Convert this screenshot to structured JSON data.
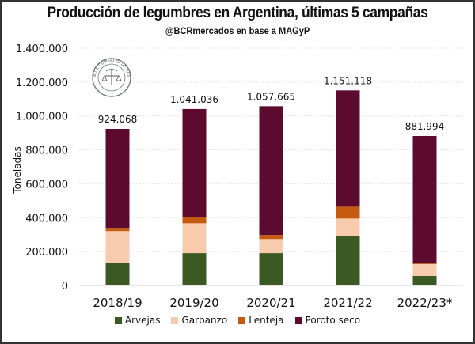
{
  "chart_data": {
    "type": "bar",
    "stacked": true,
    "title": "Producción de legumbres en Argentina, últimas 5 campañas",
    "subtitle": "@BCRmercados en base a MAGyP",
    "xlabel": "",
    "ylabel": "Toneladas",
    "ylim": [
      0,
      1400000
    ],
    "yticks": [
      0,
      200000,
      400000,
      600000,
      800000,
      1000000,
      1200000,
      1400000
    ],
    "ytick_labels": [
      "0",
      "200.000",
      "400.000",
      "600.000",
      "800.000",
      "1.000.000",
      "1.200.000",
      "1.400.000"
    ],
    "grid": true,
    "legend_position": "bottom",
    "categories": [
      "2018/19",
      "2019/20",
      "2020/21",
      "2021/22",
      "2022/23*"
    ],
    "series": [
      {
        "name": "Arvejas",
        "color": "#3b5a23",
        "values": [
          135000,
          191000,
          191000,
          293000,
          56000
        ]
      },
      {
        "name": "Garbanzo",
        "color": "#f8cbad",
        "values": [
          186000,
          176000,
          83000,
          102000,
          70000
        ]
      },
      {
        "name": "Lenteja",
        "color": "#c55a11",
        "values": [
          19000,
          38000,
          24000,
          70000,
          4000
        ]
      },
      {
        "name": "Poroto seco",
        "color": "#5c0a2e",
        "values": [
          584068,
          636036,
          759665,
          686118,
          751994
        ]
      }
    ],
    "totals": [
      924068,
      1041036,
      1057665,
      1151118,
      881994
    ],
    "total_labels": [
      "924.068",
      "1.041.036",
      "1.057.665",
      "1.151.118",
      "881.994"
    ]
  },
  "logo": {
    "text": "BOLSA DE COMERCIO DE ROSARIO"
  }
}
